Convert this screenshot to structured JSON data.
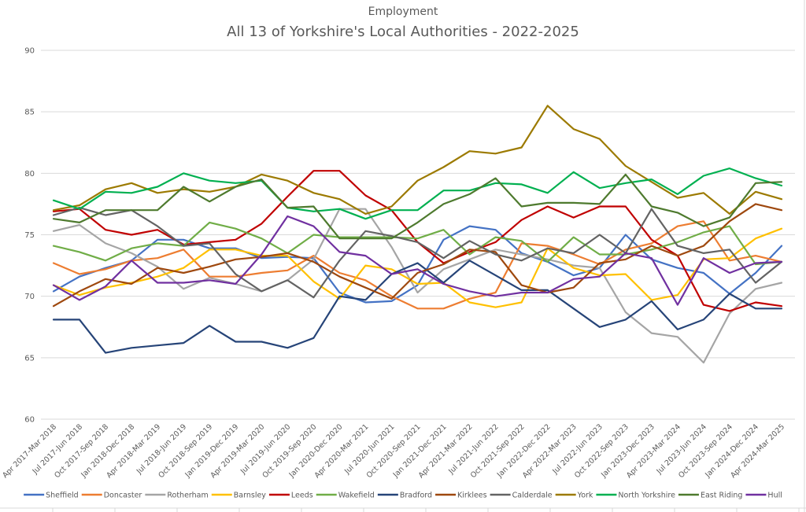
{
  "chart_data": {
    "type": "line",
    "title": "All 13 of Yorkshire's Local Authorities - 2022-2025",
    "subtitle": "Employment",
    "xlabel": "",
    "ylabel": "",
    "ylim": [
      60,
      90
    ],
    "yticks": [
      60,
      65,
      70,
      75,
      80,
      85,
      90
    ],
    "grid": true,
    "legend_position": "bottom",
    "categories": [
      "Apr 2017-Mar 2018",
      "Jul 2017-Jun 2018",
      "Oct 2017-Sep 2018",
      "Jan 2018-Dec 2018",
      "Apr 2018-Mar 2019",
      "Jul 2018-Jun 2019",
      "Oct 2018-Sep 2019",
      "Jan 2019-Dec 2019",
      "Apr 2019-Mar 2020",
      "Jul 2019-Jun 2020",
      "Oct 2019-Sep 2020",
      "Jan 2020-Dec 2020",
      "Apr 2020-Mar 2021",
      "Jul 2020-Jun 2021",
      "Oct 2020-Sep 2021",
      "Jan 2021-Dec 2021",
      "Apr 2021-Mar 2022",
      "Jul 2021-Jun 2022",
      "Oct 2021-Sep 2022",
      "Jan 2022-Dec 2022",
      "Apr 2022-Mar 2023",
      "Jul 2022-Jun 2023",
      "Oct 2022-Sep 2023",
      "Jan 2023-Dec 2023",
      "Apr 2023-Mar 2024",
      "Jul 2023-Jun 2024",
      "Oct 2023-Sep 2024",
      "Jan 2024-Dec 2024",
      "Apr 2024-Mar 2025"
    ],
    "series": [
      {
        "name": "Sheffield",
        "color": "#4472C4",
        "values": [
          70.4,
          71.6,
          72.3,
          72.9,
          74.6,
          74.6,
          73.9,
          73.9,
          73.1,
          73.2,
          73.1,
          70.3,
          69.5,
          69.6,
          70.9,
          74.6,
          75.7,
          75.4,
          73.5,
          72.8,
          71.7,
          72.3,
          75.0,
          73.0,
          72.3,
          71.9,
          70.2,
          71.9,
          74.1
        ]
      },
      {
        "name": "Doncaster",
        "color": "#ED7D31",
        "values": [
          72.7,
          71.8,
          72.2,
          72.9,
          73.1,
          73.8,
          71.6,
          71.6,
          71.9,
          72.1,
          73.3,
          71.9,
          71.3,
          70.0,
          69.0,
          69.0,
          69.8,
          70.3,
          74.3,
          74.1,
          73.4,
          72.6,
          73.8,
          74.3,
          75.7,
          76.1,
          72.9,
          73.3,
          72.8
        ]
      },
      {
        "name": "Rotherham",
        "color": "#A5A5A5",
        "values": [
          75.3,
          75.8,
          74.3,
          73.5,
          72.4,
          70.6,
          71.5,
          71.0,
          70.4,
          71.3,
          73.0,
          77.1,
          77.1,
          74.0,
          70.3,
          72.2,
          73.0,
          73.8,
          73.4,
          73.0,
          72.5,
          72.3,
          68.7,
          67.0,
          66.7,
          64.6,
          68.6,
          70.6,
          71.1
        ]
      },
      {
        "name": "Barnsley",
        "color": "#FFC000",
        "values": [
          70.9,
          70.1,
          70.7,
          71.1,
          71.6,
          72.3,
          73.8,
          73.8,
          73.3,
          73.3,
          71.2,
          69.8,
          72.5,
          72.2,
          71.0,
          71.1,
          69.5,
          69.1,
          69.5,
          73.9,
          72.3,
          71.7,
          71.8,
          69.7,
          70.1,
          73.0,
          73.1,
          74.7,
          75.5
        ]
      },
      {
        "name": "Leeds",
        "color": "#C00000",
        "values": [
          76.9,
          77.1,
          75.4,
          75.0,
          75.4,
          74.2,
          74.4,
          74.6,
          75.9,
          78.1,
          80.2,
          80.2,
          78.2,
          77.0,
          74.4,
          72.7,
          73.6,
          74.4,
          76.2,
          77.3,
          76.4,
          77.3,
          77.3,
          74.6,
          73.3,
          69.3,
          68.8,
          69.5,
          69.2
        ]
      },
      {
        "name": "Wakefield",
        "color": "#70AD47",
        "values": [
          74.1,
          73.6,
          72.9,
          73.9,
          74.3,
          74.1,
          76.0,
          75.5,
          74.7,
          73.5,
          75.0,
          74.8,
          74.8,
          74.8,
          74.7,
          75.4,
          73.4,
          74.8,
          74.5,
          72.8,
          74.8,
          73.4,
          73.4,
          73.8,
          74.4,
          75.2,
          75.7,
          72.6,
          72.8
        ]
      },
      {
        "name": "Bradford",
        "color": "#264478",
        "values": [
          68.1,
          68.1,
          65.4,
          65.8,
          66.0,
          66.2,
          67.6,
          66.3,
          66.3,
          65.8,
          66.6,
          70.0,
          69.7,
          71.8,
          72.7,
          71.1,
          72.9,
          71.7,
          70.5,
          70.5,
          69.0,
          67.5,
          68.1,
          69.6,
          67.3,
          68.1,
          70.2,
          69.0,
          69.0
        ]
      },
      {
        "name": "Kirklees",
        "color": "#9E480E",
        "values": [
          69.2,
          70.4,
          71.4,
          71.0,
          72.3,
          71.9,
          72.4,
          73.0,
          73.2,
          73.5,
          72.8,
          71.6,
          70.7,
          69.8,
          71.9,
          72.6,
          73.8,
          73.6,
          70.9,
          70.3,
          70.7,
          72.7,
          73.0,
          74.1,
          73.3,
          74.1,
          76.1,
          77.5,
          77.0
        ]
      },
      {
        "name": "Calderdale",
        "color": "#636363",
        "values": [
          76.6,
          77.2,
          76.6,
          77.0,
          75.7,
          74.1,
          74.3,
          71.8,
          70.4,
          71.3,
          69.9,
          72.9,
          75.3,
          74.9,
          74.4,
          73.1,
          74.5,
          73.4,
          72.9,
          73.9,
          73.5,
          75.0,
          73.5,
          77.1,
          74.1,
          73.5,
          73.8,
          71.1,
          72.8
        ]
      },
      {
        "name": "York",
        "color": "#9C7A00",
        "values": [
          77.0,
          77.4,
          78.7,
          79.2,
          78.4,
          78.7,
          78.5,
          78.9,
          79.9,
          79.4,
          78.4,
          77.9,
          76.7,
          77.3,
          79.4,
          80.5,
          81.8,
          81.6,
          82.1,
          85.5,
          83.6,
          82.8,
          80.6,
          79.3,
          78.0,
          78.4,
          76.7,
          78.5,
          77.9
        ]
      },
      {
        "name": "North Yorkshire",
        "color": "#00B050",
        "values": [
          77.8,
          77.1,
          78.5,
          78.4,
          78.9,
          80.0,
          79.4,
          79.2,
          79.4,
          77.2,
          76.9,
          77.1,
          76.3,
          77.0,
          77.0,
          78.6,
          78.6,
          79.2,
          79.1,
          78.4,
          80.1,
          78.8,
          79.2,
          79.5,
          78.3,
          79.8,
          80.4,
          79.6,
          79.0
        ]
      },
      {
        "name": "East Riding",
        "color": "#4E7A2E",
        "values": [
          76.3,
          76.0,
          77.0,
          77.0,
          77.0,
          78.9,
          77.7,
          78.9,
          79.5,
          77.2,
          77.3,
          74.7,
          74.7,
          74.7,
          76.0,
          77.5,
          78.3,
          79.6,
          77.3,
          77.6,
          77.6,
          77.5,
          79.9,
          77.3,
          76.8,
          75.7,
          76.4,
          79.2,
          79.3
        ]
      },
      {
        "name": "Hull",
        "color": "#7030A0",
        "values": [
          70.9,
          69.7,
          70.8,
          72.9,
          71.1,
          71.1,
          71.3,
          71.0,
          73.4,
          76.5,
          75.7,
          73.6,
          73.3,
          71.8,
          72.2,
          71.0,
          70.4,
          70.0,
          70.3,
          70.3,
          71.4,
          71.6,
          73.5,
          73.1,
          69.3,
          73.1,
          71.9,
          72.7,
          72.8
        ]
      }
    ]
  }
}
